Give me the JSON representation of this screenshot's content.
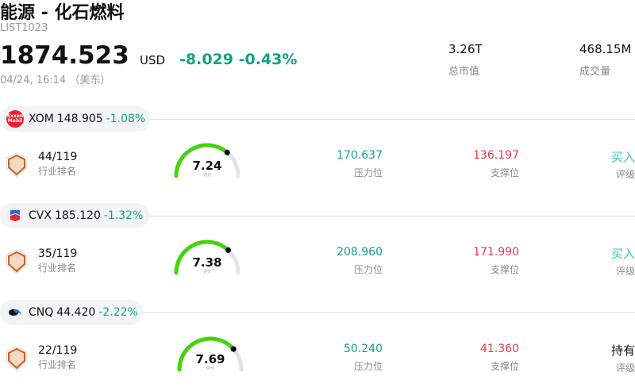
{
  "header": {
    "title": "能源 - 化石燃料",
    "code": "LIST1023",
    "price": "1874.523",
    "currency": "USD",
    "change": "-8.029 -0.43%",
    "time": "04/24, 16:14 （美东）",
    "market_cap": {
      "value": "3.26T",
      "label": "总市值"
    },
    "volume": {
      "value": "468.15M",
      "label": "成交量"
    }
  },
  "colors": {
    "down": "#14a085",
    "support": "#f0354a",
    "buy": "#3cc8c0",
    "gauge": "#44d40a"
  },
  "labels": {
    "rank": "行业排名",
    "score": "评分",
    "resistance": "压力位",
    "support": "支撑位",
    "rating": "评级"
  },
  "stocks": [
    {
      "ticker": "XOM",
      "price": "148.905",
      "change": "-1.08%",
      "logo": "Exxon Mobil",
      "logo_icon": "exxon-logo-icon",
      "rank": "44/119",
      "score": "7.24",
      "score_value": 7.24,
      "resistance": "170.637",
      "support": "136.197",
      "rating": "买入"
    },
    {
      "ticker": "CVX",
      "price": "185.120",
      "change": "-1.32%",
      "logo_icon": "chevron-logo-icon",
      "rank": "35/119",
      "score": "7.38",
      "score_value": 7.38,
      "resistance": "208.960",
      "support": "171.990",
      "rating": "买入"
    },
    {
      "ticker": "CNQ",
      "price": "44.420",
      "change": "-2.22%",
      "logo_icon": "cnq-logo-icon",
      "rank": "22/119",
      "score": "7.69",
      "score_value": 7.69,
      "resistance": "50.240",
      "support": "41.360",
      "rating": "持有"
    }
  ]
}
